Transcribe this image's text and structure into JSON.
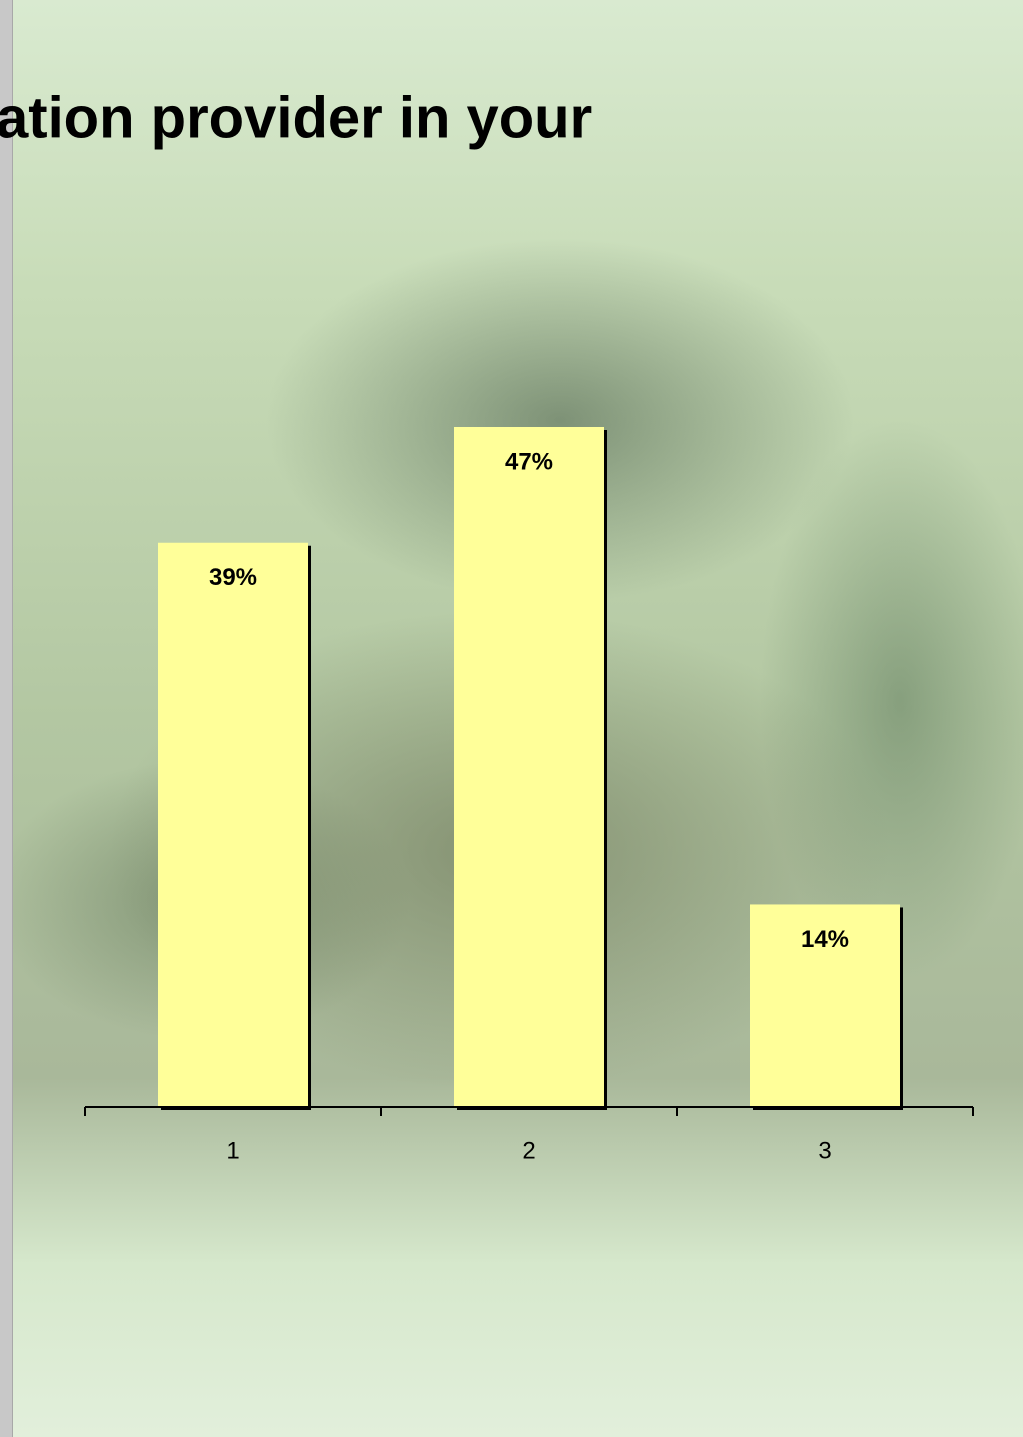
{
  "chart_data": {
    "type": "bar",
    "title": "ation provider in your",
    "categories": [
      "1",
      "2",
      "3"
    ],
    "values": [
      39,
      47,
      14
    ],
    "value_labels": [
      "39%",
      "47%",
      "14%"
    ],
    "color": "#ffff99"
  }
}
